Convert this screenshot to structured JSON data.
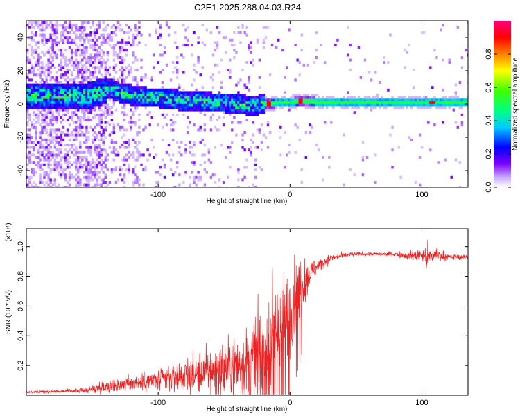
{
  "title": "C2E1.2025.288.04.03.R24",
  "chart_data": [
    {
      "type": "heatmap",
      "xlabel": "Height of straight line (km)",
      "ylabel": "Frequency (Hz)",
      "xlim": [
        -200,
        135
      ],
      "ylim": [
        -50,
        50
      ],
      "x_ticks": [
        -100,
        0,
        100
      ],
      "x_tick_labels": [
        "-100",
        "0",
        "100"
      ],
      "y_ticks": [
        -40,
        -20,
        0,
        20,
        40
      ],
      "y_tick_labels": [
        "-40",
        "-20",
        "0",
        "20",
        "40"
      ],
      "colorbar": {
        "label": "Normalized spectral amplitude",
        "range": [
          0,
          1
        ],
        "ticks": [
          0.0,
          0.2,
          0.4,
          0.6,
          0.8
        ],
        "tick_labels": [
          "0.0",
          "0.2",
          "0.4",
          "0.6",
          "0.8"
        ]
      },
      "ridge": {
        "x": [
          -155,
          -145,
          -138,
          -130,
          -120,
          -110,
          -100,
          -90,
          -80,
          -70,
          -60,
          -50,
          -40,
          -30,
          -20,
          -10,
          0,
          10,
          20,
          40,
          60,
          80,
          100,
          110,
          120,
          135
        ],
        "y": [
          5,
          7,
          9,
          7,
          5,
          4,
          4,
          3,
          2,
          2,
          1,
          1,
          0,
          -1,
          0,
          1,
          1,
          2,
          1,
          1,
          1,
          1,
          1,
          1,
          1,
          1
        ]
      }
    },
    {
      "type": "line",
      "xlabel": "Height of straight line (km)",
      "ylabel": "SNR (10 * v/v)",
      "y_multiplier": "(x10⁴)",
      "xlim": [
        -200,
        135
      ],
      "ylim": [
        0,
        1.12
      ],
      "x_ticks": [
        -100,
        0,
        100
      ],
      "x_tick_labels": [
        "-100",
        "0",
        "100"
      ],
      "y_ticks": [
        0.2,
        0.4,
        0.6,
        0.8,
        1.0
      ],
      "y_tick_labels": [
        "0.2",
        "0.4",
        "0.6",
        "0.8",
        "1.0"
      ],
      "series": [
        {
          "color": "#ee2222",
          "x": [
            -200,
            -180,
            -160,
            -150,
            -140,
            -130,
            -120,
            -110,
            -100,
            -90,
            -80,
            -70,
            -60,
            -50,
            -40,
            -30,
            -25,
            -20,
            -15,
            -10,
            -5,
            0,
            5,
            10,
            15,
            20,
            30,
            40,
            50,
            60,
            70,
            80,
            90,
            100,
            105,
            110,
            120,
            135
          ],
          "y": [
            0.02,
            0.025,
            0.03,
            0.04,
            0.06,
            0.07,
            0.08,
            0.09,
            0.1,
            0.12,
            0.13,
            0.14,
            0.16,
            0.18,
            0.2,
            0.22,
            0.26,
            0.3,
            0.36,
            0.42,
            0.48,
            0.58,
            0.68,
            0.76,
            0.82,
            0.86,
            0.92,
            0.94,
            0.95,
            0.95,
            0.95,
            0.95,
            0.94,
            0.94,
            0.92,
            0.95,
            0.93,
            0.93
          ],
          "noise": [
            0.01,
            0.01,
            0.015,
            0.03,
            0.05,
            0.05,
            0.06,
            0.07,
            0.08,
            0.1,
            0.12,
            0.14,
            0.18,
            0.2,
            0.22,
            0.26,
            0.3,
            0.35,
            0.4,
            0.4,
            0.36,
            0.3,
            0.25,
            0.2,
            0.1,
            0.06,
            0.03,
            0.02,
            0.015,
            0.015,
            0.015,
            0.02,
            0.03,
            0.05,
            0.1,
            0.06,
            0.02,
            0.02
          ]
        }
      ]
    }
  ]
}
